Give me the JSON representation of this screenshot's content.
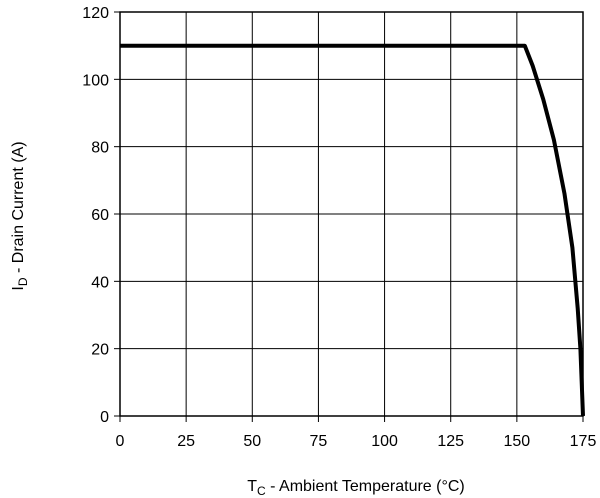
{
  "chart_data": {
    "type": "line",
    "xlabel_main": "T",
    "xlabel_sub": "C",
    "xlabel_rest": " - Ambient Temperature (°C)",
    "ylabel_main": "I",
    "ylabel_sub": "D",
    "ylabel_rest": " - Drain Current (A)",
    "xlim": [
      0,
      175
    ],
    "ylim": [
      0,
      120
    ],
    "xticks": [
      0,
      25,
      50,
      75,
      100,
      125,
      150,
      175
    ],
    "yticks": [
      0,
      20,
      40,
      60,
      80,
      100,
      120
    ],
    "grid": true,
    "series": [
      {
        "x": [
          0,
          153,
          156,
          160,
          164,
          168,
          171,
          173,
          174,
          174.5,
          175
        ],
        "y": [
          110,
          110,
          104,
          94,
          82,
          66,
          50,
          32,
          20,
          10,
          0
        ]
      }
    ]
  }
}
